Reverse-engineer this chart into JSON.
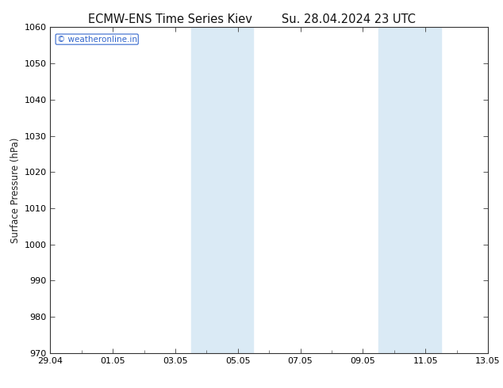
{
  "title_left": "ECMW-ENS Time Series Kiev",
  "title_right": "Su. 28.04.2024 23 UTC",
  "ylabel": "Surface Pressure (hPa)",
  "ylim": [
    970,
    1060
  ],
  "yticks": [
    970,
    980,
    990,
    1000,
    1010,
    1020,
    1030,
    1040,
    1050,
    1060
  ],
  "xlim_start": 0,
  "xlim_end": 14,
  "xtick_positions": [
    0,
    2,
    4,
    6,
    8,
    10,
    12,
    14
  ],
  "xtick_labels": [
    "29.04",
    "01.05",
    "03.05",
    "05.05",
    "07.05",
    "09.05",
    "11.05",
    "13.05"
  ],
  "minor_xtick_positions": [
    1,
    3,
    5,
    7,
    9,
    11,
    13
  ],
  "shaded_bands": [
    {
      "xmin": 4.5,
      "xmax": 5.5
    },
    {
      "xmin": 5.5,
      "xmax": 6.5
    },
    {
      "xmin": 10.5,
      "xmax": 11.5
    },
    {
      "xmin": 11.5,
      "xmax": 12.5
    }
  ],
  "shade_color": "#daeaf5",
  "background_color": "#ffffff",
  "plot_bg_color": "#ffffff",
  "watermark_text": "© weatheronline.in",
  "watermark_color": "#3366cc",
  "title_fontsize": 10.5,
  "axis_label_fontsize": 8.5,
  "tick_fontsize": 8,
  "watermark_fontsize": 7.5
}
